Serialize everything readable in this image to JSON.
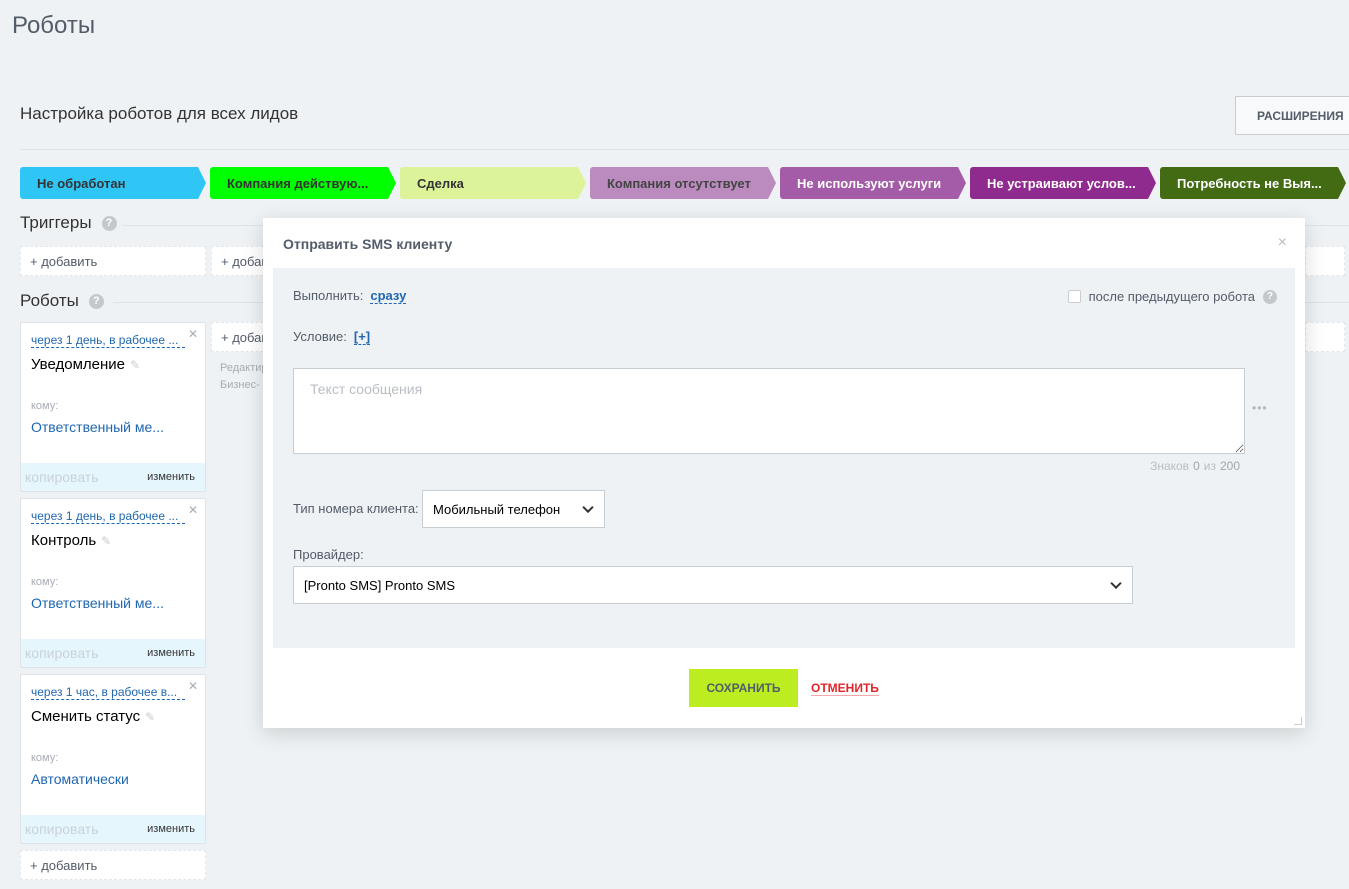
{
  "page": {
    "title": "Роботы",
    "subtitle": "Настройка роботов для всех лидов",
    "extensions_button": "РАСШИРЕНИЯ"
  },
  "stages": [
    {
      "label": "Не обработан",
      "color": "#2fc6f6",
      "text": "#333"
    },
    {
      "label": "Компания действую...",
      "color": "#00ff00",
      "text": "#333"
    },
    {
      "label": "Сделка",
      "color": "#dcf39a",
      "text": "#333"
    },
    {
      "label": "Компания отсутствует",
      "color": "#bb8bbf",
      "text": "#444"
    },
    {
      "label": "Не используют услуги",
      "color": "#a55ca8",
      "text": "#fff"
    },
    {
      "label": "Не устраивают услов...",
      "color": "#8f2a8e",
      "text": "#fff"
    },
    {
      "label": "Потребность не Выя...",
      "color": "#426b14",
      "text": "#fff"
    }
  ],
  "triggers": {
    "heading": "Триггеры",
    "help": "?",
    "add": "+ добавить"
  },
  "robots": {
    "heading": "Роботы",
    "help": "?",
    "add": "+ добавить",
    "hint": "Редактир... Бизнес-п...",
    "cards": [
      {
        "delay": "через 1 день, в рабочее ...",
        "name": "Уведомление",
        "to_label": "кому:",
        "to": "Ответственный ме...",
        "copy": "копировать",
        "edit": "изменить"
      },
      {
        "delay": "через 1 день, в рабочее ...",
        "name": "Контроль",
        "to_label": "кому:",
        "to": "Ответственный ме...",
        "copy": "копировать",
        "edit": "изменить"
      },
      {
        "delay": "через 1 час, в рабочее в...",
        "name": "Сменить статус",
        "to_label": "кому:",
        "to": "Автоматически",
        "copy": "копировать",
        "edit": "изменить"
      }
    ]
  },
  "modal": {
    "title": "Отправить SMS клиенту",
    "close": "×",
    "execute_label": "Выполнить:",
    "execute_value": "сразу",
    "after_prev": "после предыдущего робота",
    "after_prev_checked": false,
    "condition_label": "Условие:",
    "condition_value": "[+]",
    "message_placeholder": "Текст сообщения",
    "message_value": "",
    "more": "•••",
    "counter_prefix": "Знаков",
    "counter_value": "0",
    "counter_sep": "из",
    "counter_max": "200",
    "phone_type_label": "Тип номера клиента:",
    "phone_type_value": "Мобильный телефон",
    "provider_label": "Провайдер:",
    "provider_value": "[Pronto SMS] Pronto SMS",
    "save": "СОХРАНИТЬ",
    "cancel": "ОТМЕНИТЬ"
  }
}
